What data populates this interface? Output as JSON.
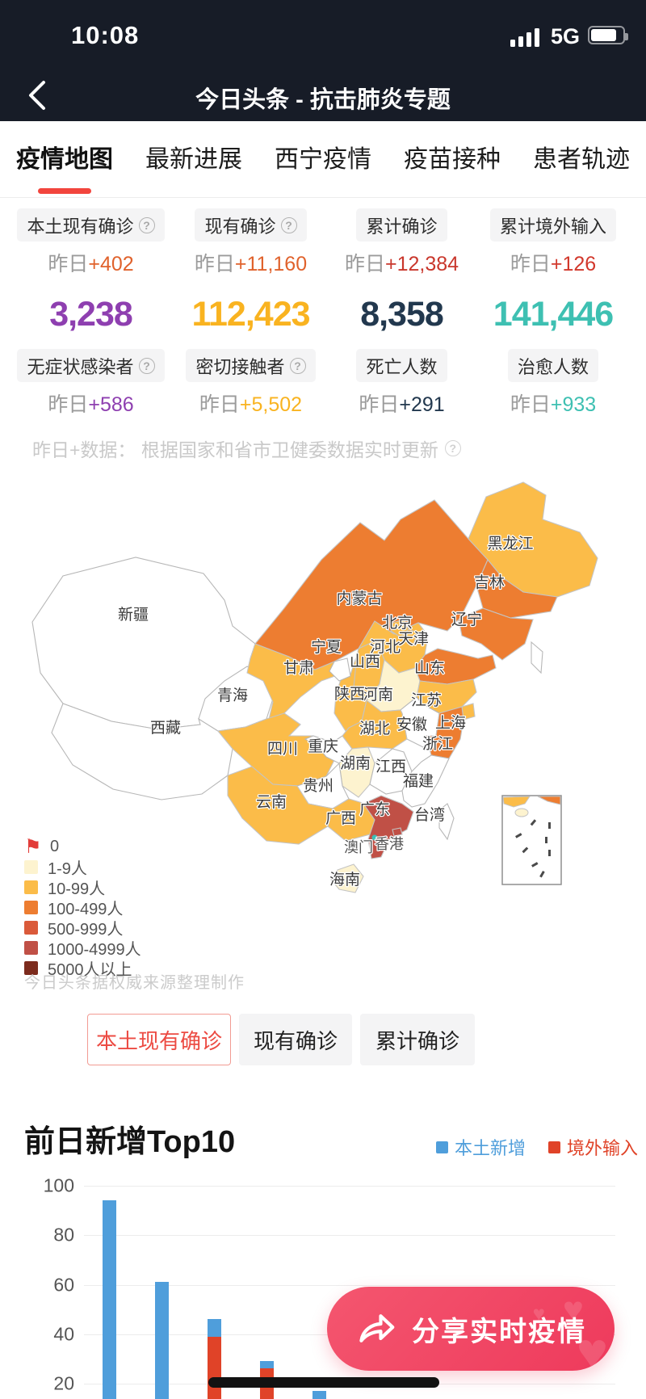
{
  "status_bar": {
    "time": "10:08",
    "network": "5G"
  },
  "nav": {
    "title": "今日头条 - 抗击肺炎专题"
  },
  "tabs": [
    {
      "label": "疫情地图",
      "active": true
    },
    {
      "label": "最新进展",
      "active": false
    },
    {
      "label": "西宁疫情",
      "active": false
    },
    {
      "label": "疫苗接种",
      "active": false
    },
    {
      "label": "患者轨迹",
      "active": false
    }
  ],
  "stats": {
    "info_glyph": "?",
    "yesterday_prefix": "昨日",
    "columns": [
      {
        "top_label": "本土现有确诊",
        "top_delta": "+402",
        "value": "3,238",
        "bottom_label": "无症状感染者",
        "bottom_delta": "+586",
        "value_color": "#8e3fb0",
        "delta_color": "#e0622c"
      },
      {
        "top_label": "现有确诊",
        "top_delta": "+11,160",
        "value": "112,423",
        "bottom_label": "密切接触者",
        "bottom_delta": "+5,502",
        "value_color": "#f9b320",
        "delta_color": "#e0622c"
      },
      {
        "top_label": "累计确诊",
        "top_delta": "+12,384",
        "value": "8,358",
        "bottom_label": "死亡人数",
        "bottom_delta": "+291",
        "value_color": "#22384e",
        "delta_color": "#c9372c"
      },
      {
        "top_label": "累计境外输入",
        "top_delta": "+126",
        "value": "141,446",
        "bottom_label": "治愈人数",
        "bottom_delta": "+933",
        "value_color": "#3ec0b2",
        "delta_color": "#d2382c"
      }
    ]
  },
  "disclaimer": "昨日+数据： 根据国家和省市卫健委数据实时更新",
  "map": {
    "flag_glyph": "⚑",
    "watermark": "今日头条据权威来源整理制作",
    "legend": [
      {
        "label": "0",
        "color": "#e23c39",
        "type": "flag"
      },
      {
        "label": "1-9人",
        "color": "#fdf3cf"
      },
      {
        "label": "10-99人",
        "color": "#fbbc49"
      },
      {
        "label": "100-499人",
        "color": "#ed7d31"
      },
      {
        "label": "500-999人",
        "color": "#da5a3a"
      },
      {
        "label": "1000-4999人",
        "color": "#c05046"
      },
      {
        "label": "5000人以上",
        "color": "#7c2b1d"
      }
    ],
    "provinces": [
      {
        "name": "新疆",
        "level": "0"
      },
      {
        "name": "西藏",
        "level": "0"
      },
      {
        "name": "青海",
        "level": "0"
      },
      {
        "name": "甘肃",
        "level": "10-99"
      },
      {
        "name": "宁夏",
        "level": "0"
      },
      {
        "name": "内蒙古",
        "level": "100-499"
      },
      {
        "name": "黑龙江",
        "level": "10-99"
      },
      {
        "name": "吉林",
        "level": "100-499"
      },
      {
        "name": "辽宁",
        "level": "100-499"
      },
      {
        "name": "河北",
        "level": "10-99"
      },
      {
        "name": "北京",
        "level": "10-99"
      },
      {
        "name": "天津",
        "level": "10-99"
      },
      {
        "name": "山西",
        "level": "10-99"
      },
      {
        "name": "山东",
        "level": "100-499"
      },
      {
        "name": "河南",
        "level": "1-9"
      },
      {
        "name": "陕西",
        "level": "10-99"
      },
      {
        "name": "江苏",
        "level": "10-99"
      },
      {
        "name": "安徽",
        "level": "0"
      },
      {
        "name": "上海",
        "level": "10-99"
      },
      {
        "name": "浙江",
        "level": "100-499"
      },
      {
        "name": "四川",
        "level": "10-99"
      },
      {
        "name": "重庆",
        "level": "0"
      },
      {
        "name": "湖北",
        "level": "10-99"
      },
      {
        "name": "湖南",
        "level": "1-9"
      },
      {
        "name": "江西",
        "level": "0"
      },
      {
        "name": "贵州",
        "level": "0"
      },
      {
        "name": "云南",
        "level": "10-99"
      },
      {
        "name": "广西",
        "level": "10-99"
      },
      {
        "name": "广东",
        "level": "1000-4999"
      },
      {
        "name": "福建",
        "level": "0"
      },
      {
        "name": "台湾",
        "level": "0"
      },
      {
        "name": "海南",
        "level": "1-9"
      },
      {
        "name": "香港",
        "level": "1000-4999"
      },
      {
        "name": "澳门",
        "level": "10-99"
      }
    ]
  },
  "filters": [
    {
      "label": "本土现有确诊",
      "active": true
    },
    {
      "label": "现有确诊",
      "active": false
    },
    {
      "label": "累计确诊",
      "active": false
    }
  ],
  "chart_section": {
    "title": "前日新增Top10"
  },
  "chart_data": {
    "type": "bar",
    "stacked": true,
    "title": "前日新增Top10",
    "legend_position": "top-right",
    "grid": true,
    "yticks": [
      100,
      80,
      60,
      40,
      20
    ],
    "ylim": [
      0,
      100
    ],
    "categories_visible": false,
    "note": "Top10 chart is cut off at screenshot bottom; 5 of 10 bars visible, category labels not visible",
    "series": [
      {
        "name": "本土新增",
        "color": "#4f9edb",
        "values": [
          94,
          61,
          7,
          3,
          17
        ]
      },
      {
        "name": "境外输入",
        "color": "#e04328",
        "values": [
          0,
          0,
          39,
          26,
          0
        ]
      }
    ]
  },
  "share": {
    "label": "分享实时疫情"
  }
}
